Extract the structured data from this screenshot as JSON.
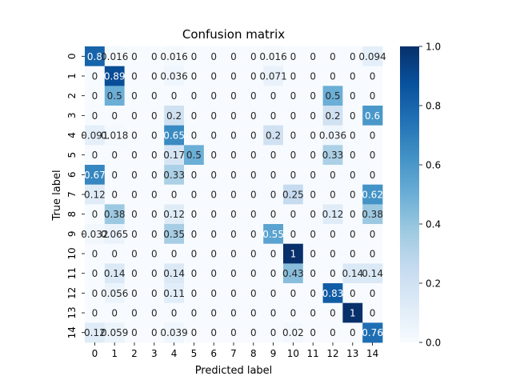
{
  "chart_data": {
    "type": "heatmap",
    "title": "Confusion matrix",
    "xlabel": "Predicted label",
    "ylabel": "True label",
    "x_categories": [
      "0",
      "1",
      "2",
      "3",
      "4",
      "5",
      "6",
      "7",
      "8",
      "9",
      "10",
      "11",
      "12",
      "13",
      "14"
    ],
    "y_categories": [
      "0",
      "1",
      "2",
      "3",
      "4",
      "5",
      "6",
      "7",
      "8",
      "9",
      "10",
      "11",
      "12",
      "13",
      "14"
    ],
    "colormap": "Blues",
    "color_low": "#f7fbff",
    "color_high": "#08306b",
    "colorbar_range": [
      0.0,
      1.0
    ],
    "colorbar_ticks": [
      "0.0",
      "0.2",
      "0.4",
      "0.6",
      "0.8",
      "1.0"
    ],
    "values": [
      [
        0.8,
        0.016,
        0,
        0,
        0.016,
        0,
        0,
        0,
        0,
        0.016,
        0,
        0,
        0,
        0,
        0.094
      ],
      [
        0,
        0.89,
        0,
        0,
        0.036,
        0,
        0,
        0,
        0,
        0.071,
        0,
        0,
        0,
        0,
        0
      ],
      [
        0,
        0.5,
        0,
        0,
        0,
        0,
        0,
        0,
        0,
        0,
        0,
        0,
        0.5,
        0,
        0
      ],
      [
        0,
        0,
        0,
        0,
        0.2,
        0,
        0,
        0,
        0,
        0,
        0,
        0,
        0.2,
        0,
        0.6
      ],
      [
        0.091,
        0.018,
        0,
        0,
        0.65,
        0,
        0,
        0,
        0,
        0.2,
        0,
        0,
        0.036,
        0,
        0
      ],
      [
        0,
        0,
        0,
        0,
        0.17,
        0.5,
        0,
        0,
        0,
        0,
        0,
        0,
        0.33,
        0,
        0
      ],
      [
        0.67,
        0,
        0,
        0,
        0.33,
        0,
        0,
        0,
        0,
        0,
        0,
        0,
        0,
        0,
        0
      ],
      [
        0.12,
        0,
        0,
        0,
        0,
        0,
        0,
        0,
        0,
        0,
        0.25,
        0,
        0,
        0,
        0.62
      ],
      [
        0,
        0.38,
        0,
        0,
        0.12,
        0,
        0,
        0,
        0,
        0,
        0,
        0,
        0.12,
        0,
        0.38
      ],
      [
        0.03,
        0.065,
        0,
        0,
        0.35,
        0,
        0,
        0,
        0,
        0.55,
        0,
        0,
        0,
        0,
        0
      ],
      [
        0,
        0,
        0,
        0,
        0,
        0,
        0,
        0,
        0,
        0,
        1,
        0,
        0,
        0,
        0
      ],
      [
        0,
        0.14,
        0,
        0,
        0.14,
        0,
        0,
        0,
        0,
        0,
        0.43,
        0,
        0,
        0.14,
        0.14
      ],
      [
        0,
        0.056,
        0,
        0,
        0.11,
        0,
        0,
        0,
        0,
        0,
        0,
        0,
        0.83,
        0,
        0
      ],
      [
        0,
        0,
        0,
        0,
        0,
        0,
        0,
        0,
        0,
        0,
        0,
        0,
        0,
        1,
        0
      ],
      [
        0.12,
        0.059,
        0,
        0,
        0.039,
        0,
        0,
        0,
        0,
        0,
        0.02,
        0,
        0,
        0,
        0.76
      ]
    ],
    "labels": [
      [
        "0.8",
        "0.016",
        "0",
        "0",
        "0.016",
        "0",
        "0",
        "0",
        "0",
        "0.016",
        "0",
        "0",
        "0",
        "0",
        "0.094"
      ],
      [
        "0",
        "0.89",
        "0",
        "0",
        "0.036",
        "0",
        "0",
        "0",
        "0",
        "0.071",
        "0",
        "0",
        "0",
        "0",
        "0"
      ],
      [
        "0",
        "0.5",
        "0",
        "0",
        "0",
        "0",
        "0",
        "0",
        "0",
        "0",
        "0",
        "0",
        "0.5",
        "0",
        "0"
      ],
      [
        "0",
        "0",
        "0",
        "0",
        "0.2",
        "0",
        "0",
        "0",
        "0",
        "0",
        "0",
        "0",
        "0.2",
        "0",
        "0.6"
      ],
      [
        "0.091",
        "0.018",
        "0",
        "0",
        "0.65",
        "0",
        "0",
        "0",
        "0",
        "0.2",
        "0",
        "0",
        "0.036",
        "0",
        "0"
      ],
      [
        "0",
        "0",
        "0",
        "0",
        "0.17",
        "0.5",
        "0",
        "0",
        "0",
        "0",
        "0",
        "0",
        "0.33",
        "0",
        "0"
      ],
      [
        "0.67",
        "0",
        "0",
        "0",
        "0.33",
        "0",
        "0",
        "0",
        "0",
        "0",
        "0",
        "0",
        "0",
        "0",
        "0"
      ],
      [
        "0.12",
        "0",
        "0",
        "0",
        "0",
        "0",
        "0",
        "0",
        "0",
        "0",
        "0.25",
        "0",
        "0",
        "0",
        "0.62"
      ],
      [
        "0",
        "0.38",
        "0",
        "0",
        "0.12",
        "0",
        "0",
        "0",
        "0",
        "0",
        "0",
        "0",
        "0.12",
        "0",
        "0.38"
      ],
      [
        "0.032",
        "0.065",
        "0",
        "0",
        "0.35",
        "0",
        "0",
        "0",
        "0",
        "0.55",
        "0",
        "0",
        "0",
        "0",
        "0"
      ],
      [
        "0",
        "0",
        "0",
        "0",
        "0",
        "0",
        "0",
        "0",
        "0",
        "0",
        "1",
        "0",
        "0",
        "0",
        "0"
      ],
      [
        "0",
        "0.14",
        "0",
        "0",
        "0.14",
        "0",
        "0",
        "0",
        "0",
        "0",
        "0.43",
        "0",
        "0",
        "0.14",
        "0.14"
      ],
      [
        "0",
        "0.056",
        "0",
        "0",
        "0.11",
        "0",
        "0",
        "0",
        "0",
        "0",
        "0",
        "0",
        "0.83",
        "0",
        "0"
      ],
      [
        "0",
        "0",
        "0",
        "0",
        "0",
        "0",
        "0",
        "0",
        "0",
        "0",
        "0",
        "0",
        "0",
        "1",
        "0"
      ],
      [
        "0.12",
        "0.059",
        "0",
        "0",
        "0.039",
        "0",
        "0",
        "0",
        "0",
        "0",
        "0.02",
        "0",
        "0",
        "0",
        "0.76"
      ]
    ]
  }
}
